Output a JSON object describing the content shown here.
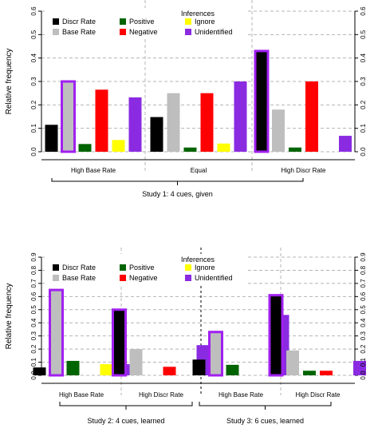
{
  "legend": {
    "title": "Inferences",
    "entries": [
      {
        "label": "Discr Rate",
        "color": "#000000"
      },
      {
        "label": "Base Rate",
        "color": "#bebebe"
      },
      {
        "label": "Positive",
        "color": "#006400"
      },
      {
        "label": "Negative",
        "color": "#ff0000"
      },
      {
        "label": "Ignore",
        "color": "#ffff00"
      },
      {
        "label": "Unidentified",
        "color": "#8a2be2"
      }
    ]
  },
  "highlight_color": "#a020f0",
  "chart_data": [
    {
      "type": "bar",
      "ylabel": "Relative frequency",
      "ylim": [
        0,
        0.6
      ],
      "yticks": [
        "0.0",
        "0.1",
        "0.2",
        "0.3",
        "0.4",
        "0.5",
        "0.6"
      ],
      "grid": true,
      "legend_position": "top-center",
      "categories": [
        "High Base Rate",
        "Equal",
        "High Discr Rate"
      ],
      "series": [
        {
          "name": "Discr Rate",
          "values": [
            0.115,
            0.148,
            0.43
          ]
        },
        {
          "name": "Base Rate",
          "values": [
            0.3,
            0.25,
            0.18
          ]
        },
        {
          "name": "Positive",
          "values": [
            0.033,
            0.018,
            0.018
          ]
        },
        {
          "name": "Negative",
          "values": [
            0.265,
            0.25,
            0.3
          ]
        },
        {
          "name": "Ignore",
          "values": [
            0.05,
            0.035,
            0.0
          ]
        },
        {
          "name": "Unidentified",
          "values": [
            0.232,
            0.3,
            0.068
          ]
        }
      ],
      "highlighted": [
        [
          0,
          1
        ],
        [
          2,
          0
        ]
      ],
      "study_labels": [
        "Study 1: 4 cues, given"
      ]
    },
    {
      "type": "bar",
      "ylabel": "Relative frequency",
      "ylim": [
        0,
        0.9
      ],
      "yticks": [
        "0.0",
        "0.1",
        "0.2",
        "0.3",
        "0.4",
        "0.5",
        "0.6",
        "0.7",
        "0.8",
        "0.9"
      ],
      "grid": true,
      "legend_position": "top-center",
      "categories": [
        "High Base Rate",
        "High Discr Rate",
        "High Base Rate",
        "High Discr Rate"
      ],
      "series": [
        {
          "name": "Discr Rate",
          "values": [
            0.06,
            0.5,
            0.12,
            0.61
          ]
        },
        {
          "name": "Base Rate",
          "values": [
            0.65,
            0.2,
            0.33,
            0.19
          ]
        },
        {
          "name": "Positive",
          "values": [
            0.11,
            0.0,
            0.08,
            0.035
          ]
        },
        {
          "name": "Negative",
          "values": [
            0.0,
            0.065,
            0.0,
            0.035
          ]
        },
        {
          "name": "Ignore",
          "values": [
            0.085,
            0.0,
            0.0,
            0.0
          ]
        },
        {
          "name": "Unidentified",
          "values": [
            0.085,
            0.23,
            0.46,
            0.11
          ]
        }
      ],
      "highlighted": [
        [
          0,
          1
        ],
        [
          1,
          0
        ],
        [
          2,
          1
        ],
        [
          3,
          0
        ]
      ],
      "study_labels": [
        "Study 2: 4 cues, learned",
        "Study 3: 6 cues, learned"
      ]
    }
  ]
}
